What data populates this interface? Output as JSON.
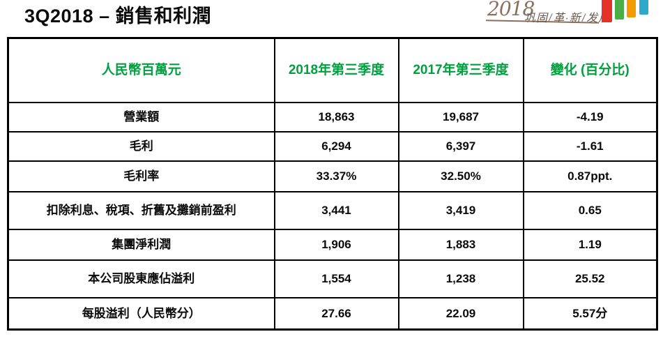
{
  "page_title": "3Q2018 – 銷售和利潤",
  "logo": {
    "year": "2018",
    "separator": "/",
    "phrase": [
      "巩固",
      "革·新",
      "发展"
    ],
    "text_color": "#8a6f5c",
    "bar_colors": [
      "#e53228",
      "#4baf47",
      "#f49b00",
      "#2fa9c9"
    ]
  },
  "table": {
    "header_color": "#00a03f",
    "headers": [
      "人民幣百萬元",
      "2018年第三季度",
      "2017年第三季度",
      "變化 (百分比)"
    ],
    "rows": [
      [
        "營業額",
        "18,863",
        "19,687",
        "-4.19"
      ],
      [
        "毛利",
        "6,294",
        "6,397",
        "-1.61"
      ],
      [
        "毛利率",
        "33.37%",
        "32.50%",
        "0.87ppt."
      ],
      [
        "扣除利息、稅項、折舊及攤銷前盈利",
        "3,441",
        "3,419",
        "0.65"
      ],
      [
        "集團淨利潤",
        "1,906",
        "1,883",
        "1.19"
      ],
      [
        "本公司股東應佔溢利",
        "1,554",
        "1,238",
        "25.52"
      ],
      [
        "每股溢利（人民幣分）",
        "27.66",
        "22.09",
        "5.57分"
      ]
    ]
  }
}
